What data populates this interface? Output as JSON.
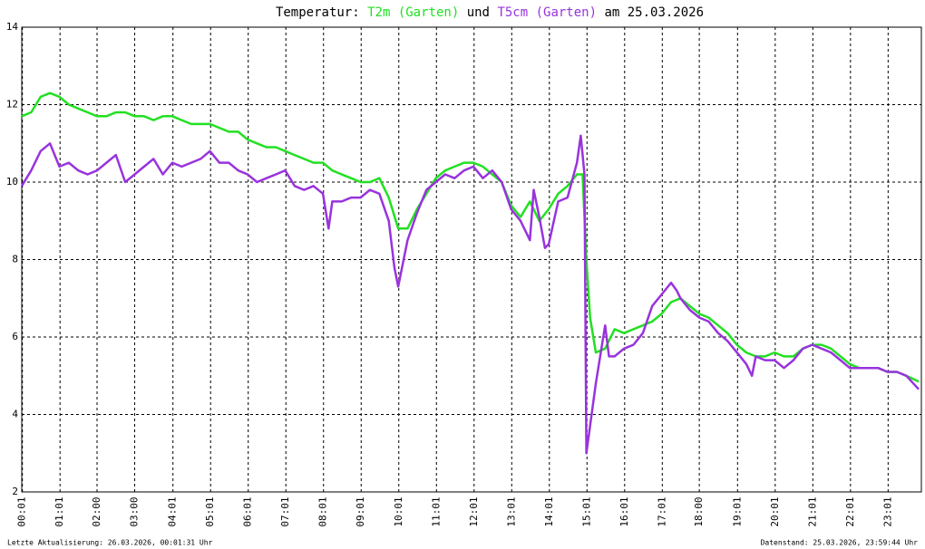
{
  "chart_data": {
    "type": "line",
    "title_prefix": "Temperatur:",
    "title_joiner": "und",
    "title_suffix": "am 25.03.2026",
    "footer_left": "Letzte Aktualisierung: 26.03.2026, 00:01:31 Uhr",
    "footer_right": "Datenstand: 25.03.2026, 23:59:44 Uhr",
    "xlim": [
      0,
      23.9
    ],
    "ylim": [
      2,
      14
    ],
    "yticks": [
      2,
      4,
      6,
      8,
      10,
      12,
      14
    ],
    "xticks": [
      {
        "value": 0.0167,
        "label": "00:01"
      },
      {
        "value": 1.0167,
        "label": "01:01"
      },
      {
        "value": 2,
        "label": "02:00"
      },
      {
        "value": 3,
        "label": "03:00"
      },
      {
        "value": 4.0167,
        "label": "04:01"
      },
      {
        "value": 5.0167,
        "label": "05:01"
      },
      {
        "value": 6.0167,
        "label": "06:01"
      },
      {
        "value": 7.0167,
        "label": "07:01"
      },
      {
        "value": 8.0167,
        "label": "08:01"
      },
      {
        "value": 9.0167,
        "label": "09:01"
      },
      {
        "value": 10.0167,
        "label": "10:01"
      },
      {
        "value": 11.0167,
        "label": "11:01"
      },
      {
        "value": 12.0167,
        "label": "12:01"
      },
      {
        "value": 13.0167,
        "label": "13:01"
      },
      {
        "value": 14.0167,
        "label": "14:01"
      },
      {
        "value": 15.0167,
        "label": "15:01"
      },
      {
        "value": 16.0167,
        "label": "16:01"
      },
      {
        "value": 17.0167,
        "label": "17:01"
      },
      {
        "value": 18,
        "label": "18:00"
      },
      {
        "value": 19.0167,
        "label": "19:01"
      },
      {
        "value": 20.0167,
        "label": "20:01"
      },
      {
        "value": 21.0167,
        "label": "21:01"
      },
      {
        "value": 22.0167,
        "label": "22:01"
      },
      {
        "value": 23.0167,
        "label": "23:01"
      }
    ],
    "grid": true,
    "series": [
      {
        "name": "T2m (Garten)",
        "color": "#22e022",
        "x": [
          0,
          0.25,
          0.5,
          0.75,
          1,
          1.25,
          1.5,
          1.75,
          2,
          2.25,
          2.5,
          2.75,
          3,
          3.25,
          3.5,
          3.75,
          4,
          4.25,
          4.5,
          4.75,
          5,
          5.25,
          5.5,
          5.75,
          6,
          6.25,
          6.5,
          6.75,
          7,
          7.25,
          7.5,
          7.75,
          8,
          8.25,
          8.5,
          8.75,
          9,
          9.25,
          9.5,
          9.75,
          10,
          10.25,
          10.5,
          10.75,
          11,
          11.25,
          11.5,
          11.75,
          12,
          12.25,
          12.5,
          12.75,
          13,
          13.25,
          13.5,
          13.75,
          14,
          14.25,
          14.5,
          14.75,
          14.9,
          15,
          15.1,
          15.25,
          15.5,
          15.75,
          16,
          16.25,
          16.5,
          16.75,
          17,
          17.25,
          17.5,
          17.75,
          18,
          18.25,
          18.5,
          18.75,
          19,
          19.25,
          19.5,
          19.75,
          20,
          20.25,
          20.5,
          20.75,
          21,
          21.25,
          21.5,
          21.75,
          22,
          22.25,
          22.5,
          22.75,
          23,
          23.25,
          23.5,
          23.83
        ],
        "values": [
          11.7,
          11.8,
          12.2,
          12.3,
          12.2,
          12.0,
          11.9,
          11.8,
          11.7,
          11.7,
          11.8,
          11.8,
          11.7,
          11.7,
          11.6,
          11.7,
          11.7,
          11.6,
          11.5,
          11.5,
          11.5,
          11.4,
          11.3,
          11.3,
          11.1,
          11.0,
          10.9,
          10.9,
          10.8,
          10.7,
          10.6,
          10.5,
          10.5,
          10.3,
          10.2,
          10.1,
          10.0,
          10.0,
          10.1,
          9.6,
          8.8,
          8.8,
          9.3,
          9.7,
          10.1,
          10.3,
          10.4,
          10.5,
          10.5,
          10.4,
          10.2,
          10.0,
          9.4,
          9.1,
          9.5,
          9.0,
          9.3,
          9.7,
          9.9,
          10.2,
          10.2,
          8.0,
          6.5,
          5.6,
          5.7,
          6.2,
          6.1,
          6.2,
          6.3,
          6.4,
          6.6,
          6.9,
          7.0,
          6.8,
          6.6,
          6.5,
          6.3,
          6.1,
          5.8,
          5.6,
          5.5,
          5.5,
          5.6,
          5.5,
          5.5,
          5.7,
          5.8,
          5.8,
          5.7,
          5.5,
          5.3,
          5.2,
          5.2,
          5.2,
          5.1,
          5.1,
          5.0,
          4.85
        ]
      },
      {
        "name": "T5cm (Garten)",
        "color": "#9933dd",
        "x": [
          0,
          0.25,
          0.5,
          0.75,
          1,
          1.25,
          1.5,
          1.75,
          2,
          2.25,
          2.5,
          2.75,
          3,
          3.25,
          3.5,
          3.75,
          4,
          4.25,
          4.5,
          4.75,
          5,
          5.25,
          5.5,
          5.75,
          6,
          6.25,
          6.5,
          6.75,
          7,
          7.25,
          7.5,
          7.75,
          8,
          8.15,
          8.25,
          8.5,
          8.75,
          9,
          9.25,
          9.5,
          9.75,
          9.9,
          10,
          10.25,
          10.5,
          10.75,
          11,
          11.25,
          11.5,
          11.75,
          12,
          12.25,
          12.5,
          12.75,
          13,
          13.25,
          13.5,
          13.6,
          13.75,
          13.9,
          14,
          14.25,
          14.5,
          14.75,
          14.85,
          14.95,
          15,
          15.25,
          15.5,
          15.6,
          15.75,
          16,
          16.25,
          16.5,
          16.75,
          17,
          17.25,
          17.4,
          17.5,
          17.75,
          18,
          18.25,
          18.5,
          18.75,
          19,
          19.25,
          19.4,
          19.5,
          19.75,
          20,
          20.25,
          20.5,
          20.75,
          21,
          21.25,
          21.5,
          21.75,
          22,
          22.25,
          22.5,
          22.75,
          23,
          23.25,
          23.5,
          23.83
        ],
        "values": [
          9.9,
          10.3,
          10.8,
          11.0,
          10.4,
          10.5,
          10.3,
          10.2,
          10.3,
          10.5,
          10.7,
          10.0,
          10.2,
          10.4,
          10.6,
          10.2,
          10.5,
          10.4,
          10.5,
          10.6,
          10.8,
          10.5,
          10.5,
          10.3,
          10.2,
          10.0,
          10.1,
          10.2,
          10.3,
          9.9,
          9.8,
          9.9,
          9.7,
          8.8,
          9.5,
          9.5,
          9.6,
          9.6,
          9.8,
          9.7,
          9.0,
          7.8,
          7.3,
          8.5,
          9.2,
          9.8,
          10.0,
          10.2,
          10.1,
          10.3,
          10.4,
          10.1,
          10.3,
          10.0,
          9.3,
          9.0,
          8.5,
          9.8,
          9.1,
          8.3,
          8.4,
          9.5,
          9.6,
          10.5,
          11.2,
          10.2,
          3.0,
          4.8,
          6.3,
          5.5,
          5.5,
          5.7,
          5.8,
          6.1,
          6.8,
          7.1,
          7.4,
          7.2,
          7.0,
          6.7,
          6.5,
          6.4,
          6.1,
          5.9,
          5.6,
          5.3,
          5.0,
          5.5,
          5.4,
          5.4,
          5.2,
          5.4,
          5.7,
          5.8,
          5.7,
          5.6,
          5.4,
          5.2,
          5.2,
          5.2,
          5.2,
          5.1,
          5.1,
          5.0,
          4.65
        ]
      }
    ]
  }
}
